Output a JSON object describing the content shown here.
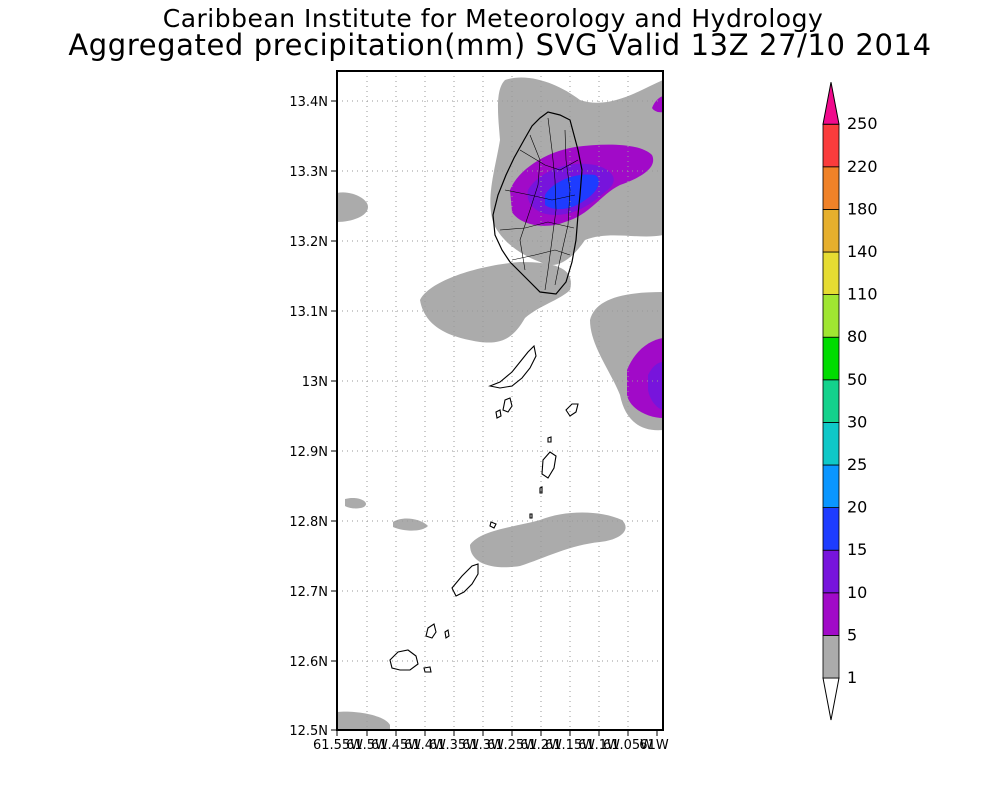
{
  "header": {
    "title": "Caribbean Institute for Meteorology and Hydrology",
    "subtitle": "Aggregated precipitation(mm) SVG Valid 13Z 27/10 2014"
  },
  "map": {
    "lat_labels": [
      "13.4N",
      "13.3N",
      "13.2N",
      "13.1N",
      "13N",
      "12.9N",
      "12.8N",
      "12.7N",
      "12.6N",
      "12.5N"
    ],
    "lon_labels": [
      "61.55W",
      "61.5W",
      "61.45W",
      "61.4W",
      "61.35W",
      "61.3W",
      "61.25W",
      "61.2W",
      "61.15W",
      "61.1W",
      "61.05W",
      "61W"
    ],
    "region": "Saint Vincent and the Grenadines",
    "dotted_grid": true
  },
  "legend": {
    "levels": [
      "1",
      "5",
      "10",
      "15",
      "20",
      "25",
      "30",
      "50",
      "80",
      "110",
      "140",
      "180",
      "220",
      "250"
    ],
    "colors": [
      "#ababab",
      "#a10ac8",
      "#7714dc",
      "#1e3cff",
      "#0a96ff",
      "#0fc8c8",
      "#14d28c",
      "#00dc00",
      "#a0e632",
      "#e6dc32",
      "#e6af2d",
      "#f08228",
      "#fa3c3c",
      "#f00a8c"
    ]
  }
}
